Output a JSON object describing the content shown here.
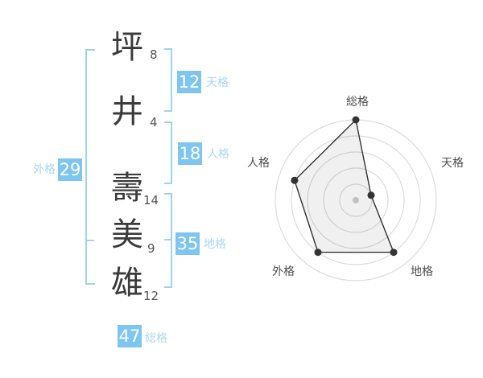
{
  "name": {
    "characters": [
      {
        "char": "坪",
        "strokes": "8"
      },
      {
        "char": "井",
        "strokes": "4"
      },
      {
        "char": "壽",
        "strokes": "14"
      },
      {
        "char": "美",
        "strokes": "9"
      },
      {
        "char": "雄",
        "strokes": "12"
      }
    ]
  },
  "gauges": {
    "tenkaku": {
      "value": "12",
      "label": "天格"
    },
    "jinkaku": {
      "value": "18",
      "label": "人格"
    },
    "chikaku": {
      "value": "35",
      "label": "地格"
    },
    "gaikaku": {
      "value": "29",
      "label": "外格"
    },
    "soukaku": {
      "value": "47",
      "label": "総格"
    }
  },
  "colors": {
    "badge_blue": "#7ec5f0",
    "label_blue": "#a8d8f5",
    "bracket_blue": "#9dd3f4",
    "ink": "#3b3b3b",
    "ring_gray": "#dcdcdc",
    "chart_ink": "#333333",
    "chart_label_gray": "#4d4d4d"
  },
  "chart_data": {
    "type": "radar",
    "axes": [
      "総格",
      "天格",
      "地格",
      "外格",
      "人格"
    ],
    "values": [
      5,
      1,
      4,
      4,
      4
    ],
    "max": 5,
    "rings": 5,
    "grid": "concentric-circles",
    "legend_position": "none",
    "title": ""
  }
}
